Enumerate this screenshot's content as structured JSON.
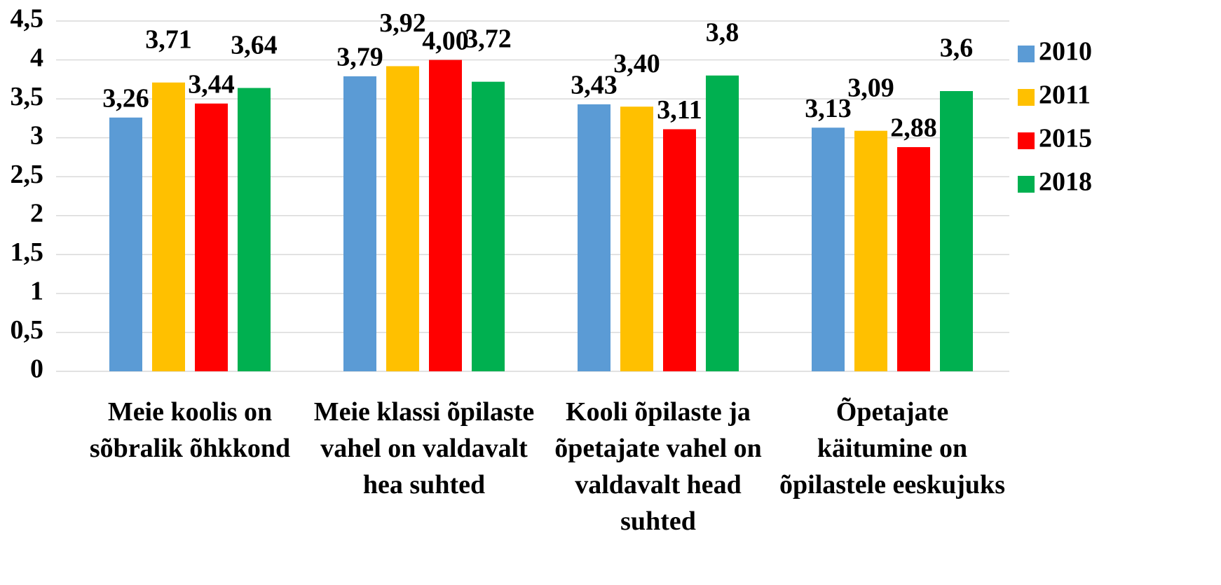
{
  "chart_data": {
    "type": "bar",
    "categories": [
      "Meie koolis on sõbralik õhkkond",
      "Meie klassi õpilaste vahel on valdavalt hea suhted",
      "Kooli õpilaste ja õpetajate vahel on valdavalt head suhted",
      "Õpetajate käitumine on õpilastele eeskujuks"
    ],
    "series": [
      {
        "name": "2010",
        "color": "#5b9bd5",
        "values": [
          3.26,
          3.79,
          3.43,
          3.13
        ],
        "value_labels": [
          "3,26",
          "3,79",
          "3,43",
          "3,13"
        ]
      },
      {
        "name": "2011",
        "color": "#ffc000",
        "values": [
          3.71,
          3.92,
          3.4,
          3.09
        ],
        "value_labels": [
          "3,71",
          "3,92",
          "3,40",
          "3,09"
        ]
      },
      {
        "name": "2015",
        "color": "#ff0000",
        "values": [
          3.44,
          4.0,
          3.11,
          2.88
        ],
        "value_labels": [
          "3,44",
          "4,00",
          "3,11",
          "2,88"
        ]
      },
      {
        "name": "2018",
        "color": "#00b050",
        "values": [
          3.64,
          3.72,
          3.8,
          3.6
        ],
        "value_labels": [
          "3,64",
          "3,72",
          "3,8",
          "3,6"
        ]
      }
    ],
    "ylim": [
      0,
      4.5
    ],
    "yticks": [
      0,
      {
        "value": 0.5,
        "label": "0,5"
      },
      1,
      {
        "value": 1.5,
        "label": "1,5"
      },
      2,
      {
        "value": 2.5,
        "label": "2,5"
      },
      3,
      {
        "value": 3.5,
        "label": "3,5"
      },
      4,
      {
        "value": 4.5,
        "label": "4,5"
      }
    ],
    "grid": true,
    "legend": "right"
  }
}
